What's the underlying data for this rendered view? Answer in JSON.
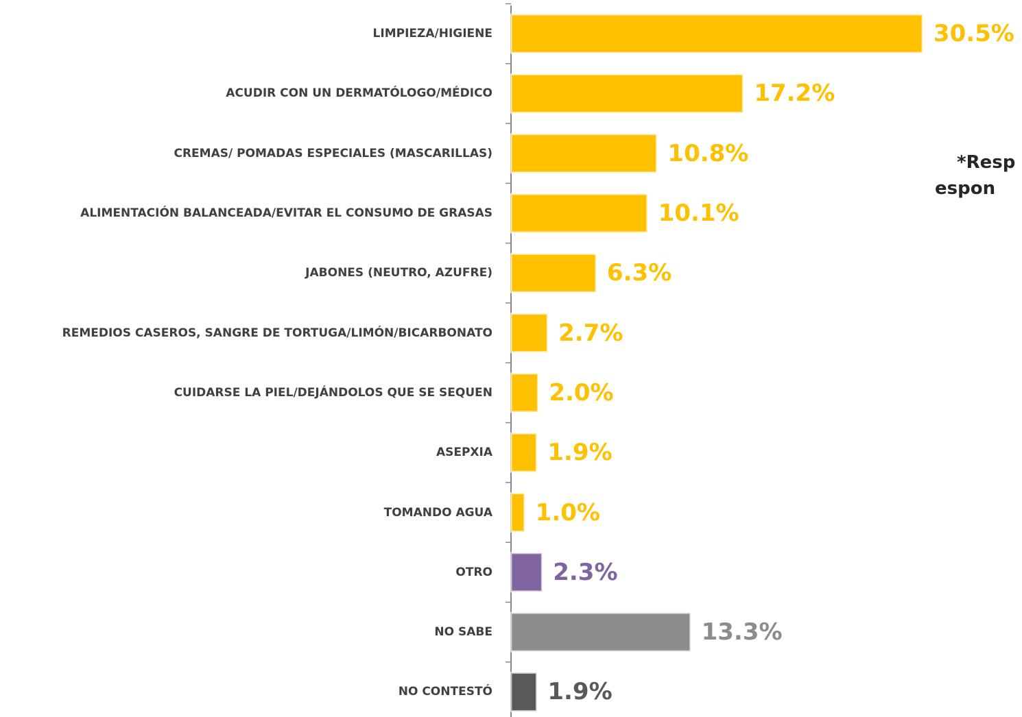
{
  "chart_data": {
    "type": "bar",
    "orientation": "horizontal",
    "categories": [
      "LIMPIEZA/HIGIENE",
      "ACUDIR CON UN DERMATÓLOGO/MÉDICO",
      "CREMAS/ POMADAS ESPECIALES (MASCARILLAS)",
      "ALIMENTACIÓN BALANCEADA/EVITAR EL CONSUMO DE GRASAS",
      "JABONES (NEUTRO, AZUFRE)",
      "REMEDIOS CASEROS, SANGRE DE TORTUGA/LIMÓN/BICARBONATO",
      "CUIDARSE LA PIEL/DEJÁNDOLOS QUE SE SEQUEN",
      "ASEPXIA",
      "TOMANDO AGUA",
      "OTRO",
      "NO SABE",
      "NO CONTESTÓ"
    ],
    "values": [
      30.5,
      17.2,
      10.8,
      10.1,
      6.3,
      2.7,
      2.0,
      1.9,
      1.0,
      2.3,
      13.3,
      1.9
    ],
    "value_labels": [
      "30.5%",
      "17.2%",
      "10.8%",
      "10.1%",
      "6.3%",
      "2.7%",
      "2.0%",
      "1.9%",
      "1.0%",
      "2.3%",
      "13.3%",
      "1.9%"
    ],
    "colors": [
      "#FFC000",
      "#FFC000",
      "#FFC000",
      "#FFC000",
      "#FFC000",
      "#FFC000",
      "#FFC000",
      "#FFC000",
      "#FFC000",
      "#8064A2",
      "#8C8C8C",
      "#595959"
    ],
    "annotation": [
      "*Resp",
      "espon"
    ]
  }
}
